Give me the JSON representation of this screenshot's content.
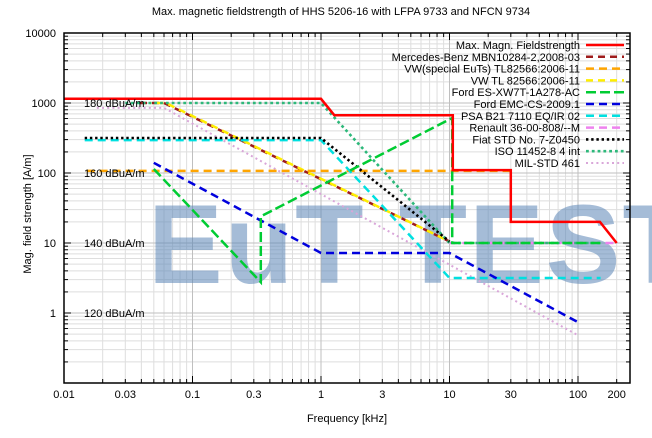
{
  "title": "Max. magnetic fieldstrength of HHS 5206-16 with LFPA 9733 and NFCN 9734",
  "watermark": "EuT TEST",
  "watermark_color": "#5c87b8",
  "axes": {
    "x_label": "Frequency [kHz]",
    "y_label": "Mag. field strength [A/m]",
    "x_range": [
      0.01,
      254
    ],
    "y_range": [
      0.1,
      10000
    ],
    "x_ticks": [
      {
        "f": 0.01,
        "label": "0.01"
      },
      {
        "f": 0.03,
        "label": "0.03"
      },
      {
        "f": 0.1,
        "label": "0.1"
      },
      {
        "f": 0.3,
        "label": "0.3"
      },
      {
        "f": 1,
        "label": "1"
      },
      {
        "f": 3,
        "label": "3"
      },
      {
        "f": 10,
        "label": "10"
      },
      {
        "f": 30,
        "label": "30"
      },
      {
        "f": 100,
        "label": "100"
      },
      {
        "f": 200,
        "label": "200"
      }
    ],
    "y_ticks": [
      {
        "v": 1,
        "label": "1"
      },
      {
        "v": 10,
        "label": "10"
      },
      {
        "v": 100,
        "label": "100"
      },
      {
        "v": 1000,
        "label": "1000"
      },
      {
        "v": 10000,
        "label": "10000"
      }
    ]
  },
  "annotations": [
    {
      "text": "180 dBuA/m",
      "v": 1000
    },
    {
      "text": "160 dBuA/m",
      "v": 100
    },
    {
      "text": "140 dBuA/m",
      "v": 10
    },
    {
      "text": "120 dBuA/m",
      "v": 1
    }
  ],
  "chart_data": {
    "type": "line",
    "log_x": true,
    "log_y": true,
    "x_unit": "kHz",
    "y_unit": "A/m",
    "grid": true,
    "legend_position": "top-right",
    "series": [
      {
        "name": "Max. Magn. Fieldstrength",
        "color": "#ff0000",
        "style": "solid",
        "width": 2.5,
        "points": [
          [
            0.01,
            1150
          ],
          [
            1,
            1150
          ],
          [
            1.27,
            670
          ],
          [
            10.6,
            670
          ],
          [
            10.6,
            110
          ],
          [
            30,
            110
          ],
          [
            30,
            20
          ],
          [
            148,
            20
          ],
          [
            200,
            10
          ]
        ]
      },
      {
        "name": "Mercedes-Benz MBN10284-2,2008-03",
        "color": "#9e1b1b",
        "style": "dashed",
        "width": 2.5,
        "dash": "7,5",
        "points": [
          [
            0.039,
            1000
          ],
          [
            0.06,
            1000
          ],
          [
            10,
            10.5
          ]
        ]
      },
      {
        "name": "VW(special EuTs) TL82566:2006-11",
        "color": "#ffa500",
        "style": "dashed",
        "width": 2.5,
        "points": [
          [
            0.015,
            107
          ],
          [
            30,
            107
          ]
        ]
      },
      {
        "name": "VW TL 82566:2006-11",
        "color": "#ffee00",
        "style": "dashed",
        "width": 2.5,
        "dash": "7,5",
        "dash_offset": 6,
        "points": [
          [
            0.047,
            1000
          ],
          [
            0.062,
            1000
          ],
          [
            10,
            10.5
          ]
        ]
      },
      {
        "name": "Ford ES-XW7T-1A278-AC",
        "color": "#00cc33",
        "style": "dashed",
        "width": 2.5,
        "dash": "10,4",
        "points": [
          [
            0.05,
            114
          ],
          [
            0.34,
            2.75
          ],
          [
            0.34,
            24
          ],
          [
            10.5,
            610
          ],
          [
            10.5,
            10
          ],
          [
            150,
            10
          ]
        ]
      },
      {
        "name": "Ford EMC-CS-2009.1",
        "color": "#0000dd",
        "style": "dashed",
        "width": 2.5,
        "points": [
          [
            0.05,
            140
          ],
          [
            1,
            7.2
          ],
          [
            10,
            7.2
          ],
          [
            100,
            0.74
          ]
        ]
      },
      {
        "name": "PSA B21 7110 EQ/IR 02",
        "color": "#00e0e0",
        "style": "dashed",
        "width": 2.5,
        "points": [
          [
            0.0145,
            295
          ],
          [
            1,
            295
          ],
          [
            10,
            3.16
          ],
          [
            150,
            3.16
          ]
        ]
      },
      {
        "name": "Renault 36-00-808/--M",
        "color": "#ee82ee",
        "style": "dashed",
        "width": 2.5,
        "points": [
          [
            10,
            10
          ],
          [
            200,
            10
          ]
        ]
      },
      {
        "name": "Fiat STD No. 7-Z0450",
        "color": "#000000",
        "style": "dotted",
        "width": 2.6,
        "dash": "2.4,2.8",
        "points": [
          [
            0.0145,
            316
          ],
          [
            1,
            316
          ],
          [
            10,
            10.5
          ]
        ]
      },
      {
        "name": "ISO 11452-8 4 int",
        "color": "#2db87a",
        "style": "dotted",
        "width": 2.6,
        "dash": "2.8,3",
        "points": [
          [
            0.03,
            1000
          ],
          [
            1,
            1000
          ],
          [
            10,
            10
          ],
          [
            150,
            10
          ]
        ]
      },
      {
        "name": "MIL-STD 461",
        "color": "#d9a6d9",
        "style": "dotted",
        "width": 2,
        "dash": "2,3.2",
        "points": [
          [
            0.018,
            850
          ],
          [
            0.06,
            850
          ],
          [
            100,
            0.48
          ]
        ]
      }
    ]
  }
}
